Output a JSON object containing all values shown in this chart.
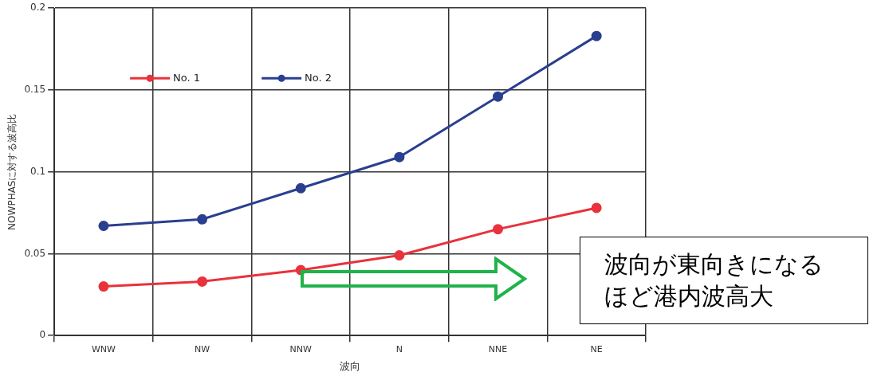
{
  "chart_data": {
    "type": "line",
    "xlabel": "波向",
    "ylabel": "NOWPHASに対する波高比",
    "categories": [
      "WNW",
      "NW",
      "NNW",
      "N",
      "NNE",
      "NE"
    ],
    "series": [
      {
        "name": "No. 1",
        "color": "#e8323c",
        "values": [
          0.03,
          0.033,
          0.04,
          0.049,
          0.065,
          0.078
        ]
      },
      {
        "name": "No. 2",
        "color": "#2a3f8f",
        "values": [
          0.067,
          0.071,
          0.09,
          0.109,
          0.146,
          0.183
        ]
      }
    ],
    "ylim": [
      0,
      0.2
    ],
    "yticks": [
      0,
      0.05,
      0.1,
      0.15,
      0.2
    ],
    "grid": true,
    "legend": "top left",
    "marker": "circle",
    "annotations": [
      "波向が東向きになるほど港内波高大"
    ]
  }
}
